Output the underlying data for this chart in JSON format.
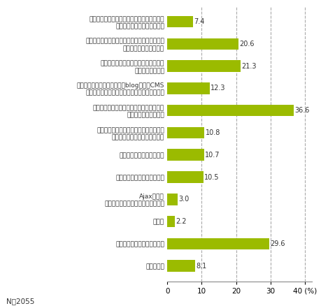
{
  "categories": [
    "帯域・サーバースペック・セキュリティなど\nインフラ面でのシステム投賄",
    "ユーザビリティ（操作性やアクセシビリティ、\nウェブデザインの向上）",
    "商品情報などコンテンツ増強のための\nデータベース構築",
    "情報更新頼度を上げるためのblog利用とCMS\n（コンテンツマネージメントシステムの導入）",
    "アクセス数向上・集客のための広告対策、\nネット上の露出アップ",
    "メール配信などカスタマーリレーション\nシップ向上のための仕組み作り",
    "アクセス解析ツールの導入",
    "モバイルウェブサイトの開設",
    "Ajaxなどの\nリッチインターフェースの取り入れ",
    "その他",
    "特に取り組みたい対策はない",
    "わからない"
  ],
  "values": [
    7.4,
    20.6,
    21.3,
    12.3,
    36.6,
    10.8,
    10.7,
    10.5,
    3.0,
    2.2,
    29.6,
    8.1
  ],
  "bar_color": "#9BBB00",
  "text_color": "#333333",
  "background_color": "#ffffff",
  "xlim": [
    0,
    42
  ],
  "xticks": [
    0,
    10,
    20,
    30,
    40
  ],
  "note": "N＝2055",
  "grid_color": "#aaaaaa",
  "bar_height": 0.52,
  "value_fontsize": 7.0,
  "label_fontsize": 6.5,
  "tick_fontsize": 7.5
}
